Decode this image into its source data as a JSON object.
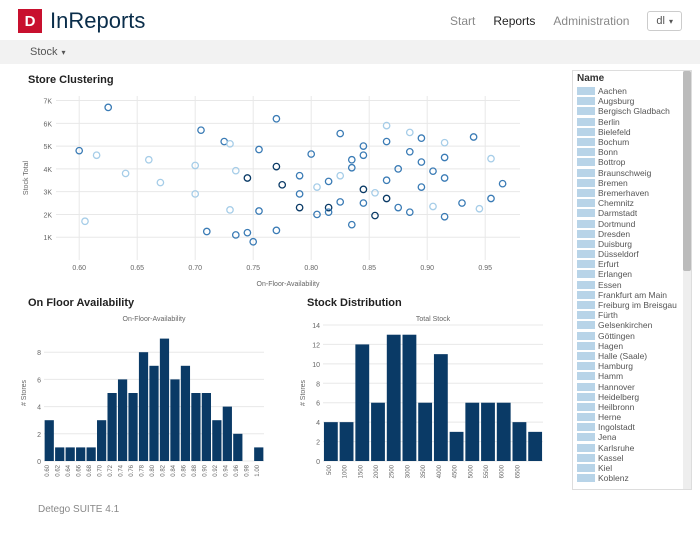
{
  "brand": {
    "in": "In",
    "reports": "Reports",
    "logo_letter": "D",
    "logo_bg": "#c8102e"
  },
  "nav": {
    "start": "Start",
    "reports": "Reports",
    "admin": "Administration",
    "user": "dl"
  },
  "toolbar": {
    "stock": "Stock"
  },
  "scatter": {
    "title": "Store Clustering",
    "xlabel": "On-Floor-Availability",
    "ylabel": "Stock Total",
    "xlim": [
      0.58,
      0.98
    ],
    "ylim": [
      0,
      7200
    ],
    "xticks": [
      0.6,
      0.65,
      0.7,
      0.75,
      0.8,
      0.85,
      0.9,
      0.95
    ],
    "yticks_labels": [
      "1K",
      "2K",
      "3K",
      "4K",
      "5K",
      "6K",
      "7K"
    ],
    "ytick_vals": [
      1000,
      2000,
      3000,
      4000,
      5000,
      6000,
      7000
    ],
    "grid_color": "#e8e8e8",
    "marker_stroke_width": 1.3,
    "marker_r": 3.2,
    "colors": {
      "dark": "#0a3a66",
      "mid": "#3a7bb5",
      "light": "#a6cde8"
    },
    "points": [
      {
        "x": 0.6,
        "y": 4800,
        "c": "mid"
      },
      {
        "x": 0.605,
        "y": 1700,
        "c": "light"
      },
      {
        "x": 0.615,
        "y": 4600,
        "c": "light"
      },
      {
        "x": 0.625,
        "y": 6700,
        "c": "mid"
      },
      {
        "x": 0.64,
        "y": 3800,
        "c": "light"
      },
      {
        "x": 0.66,
        "y": 4400,
        "c": "light"
      },
      {
        "x": 0.67,
        "y": 3400,
        "c": "light"
      },
      {
        "x": 0.705,
        "y": 5700,
        "c": "mid"
      },
      {
        "x": 0.7,
        "y": 4150,
        "c": "light"
      },
      {
        "x": 0.7,
        "y": 2900,
        "c": "light"
      },
      {
        "x": 0.71,
        "y": 1250,
        "c": "mid"
      },
      {
        "x": 0.725,
        "y": 5200,
        "c": "mid"
      },
      {
        "x": 0.73,
        "y": 5100,
        "c": "light"
      },
      {
        "x": 0.735,
        "y": 3920,
        "c": "light"
      },
      {
        "x": 0.73,
        "y": 2200,
        "c": "light"
      },
      {
        "x": 0.735,
        "y": 1100,
        "c": "mid"
      },
      {
        "x": 0.745,
        "y": 3600,
        "c": "dark"
      },
      {
        "x": 0.745,
        "y": 1200,
        "c": "mid"
      },
      {
        "x": 0.755,
        "y": 4850,
        "c": "mid"
      },
      {
        "x": 0.755,
        "y": 2150,
        "c": "mid"
      },
      {
        "x": 0.75,
        "y": 800,
        "c": "mid"
      },
      {
        "x": 0.77,
        "y": 6200,
        "c": "mid"
      },
      {
        "x": 0.77,
        "y": 4100,
        "c": "dark"
      },
      {
        "x": 0.775,
        "y": 3300,
        "c": "dark"
      },
      {
        "x": 0.77,
        "y": 1300,
        "c": "mid"
      },
      {
        "x": 0.79,
        "y": 3700,
        "c": "mid"
      },
      {
        "x": 0.79,
        "y": 2900,
        "c": "mid"
      },
      {
        "x": 0.79,
        "y": 2300,
        "c": "dark"
      },
      {
        "x": 0.8,
        "y": 4650,
        "c": "mid"
      },
      {
        "x": 0.805,
        "y": 3200,
        "c": "light"
      },
      {
        "x": 0.805,
        "y": 2000,
        "c": "mid"
      },
      {
        "x": 0.815,
        "y": 3450,
        "c": "mid"
      },
      {
        "x": 0.815,
        "y": 2300,
        "c": "dark"
      },
      {
        "x": 0.815,
        "y": 2100,
        "c": "mid"
      },
      {
        "x": 0.825,
        "y": 5550,
        "c": "mid"
      },
      {
        "x": 0.825,
        "y": 3700,
        "c": "light"
      },
      {
        "x": 0.825,
        "y": 2550,
        "c": "mid"
      },
      {
        "x": 0.835,
        "y": 4400,
        "c": "mid"
      },
      {
        "x": 0.835,
        "y": 4050,
        "c": "mid"
      },
      {
        "x": 0.835,
        "y": 1550,
        "c": "mid"
      },
      {
        "x": 0.845,
        "y": 5000,
        "c": "mid"
      },
      {
        "x": 0.845,
        "y": 4600,
        "c": "mid"
      },
      {
        "x": 0.845,
        "y": 3100,
        "c": "dark"
      },
      {
        "x": 0.845,
        "y": 2500,
        "c": "mid"
      },
      {
        "x": 0.855,
        "y": 2950,
        "c": "light"
      },
      {
        "x": 0.855,
        "y": 1950,
        "c": "dark"
      },
      {
        "x": 0.865,
        "y": 5900,
        "c": "light"
      },
      {
        "x": 0.865,
        "y": 5200,
        "c": "mid"
      },
      {
        "x": 0.865,
        "y": 3500,
        "c": "mid"
      },
      {
        "x": 0.865,
        "y": 2700,
        "c": "dark"
      },
      {
        "x": 0.875,
        "y": 4000,
        "c": "mid"
      },
      {
        "x": 0.875,
        "y": 2300,
        "c": "mid"
      },
      {
        "x": 0.885,
        "y": 5600,
        "c": "light"
      },
      {
        "x": 0.885,
        "y": 4750,
        "c": "mid"
      },
      {
        "x": 0.885,
        "y": 2100,
        "c": "mid"
      },
      {
        "x": 0.895,
        "y": 5350,
        "c": "mid"
      },
      {
        "x": 0.895,
        "y": 4300,
        "c": "mid"
      },
      {
        "x": 0.895,
        "y": 3200,
        "c": "mid"
      },
      {
        "x": 0.905,
        "y": 3900,
        "c": "mid"
      },
      {
        "x": 0.905,
        "y": 2350,
        "c": "light"
      },
      {
        "x": 0.915,
        "y": 5150,
        "c": "light"
      },
      {
        "x": 0.915,
        "y": 4500,
        "c": "mid"
      },
      {
        "x": 0.915,
        "y": 3600,
        "c": "mid"
      },
      {
        "x": 0.915,
        "y": 1900,
        "c": "mid"
      },
      {
        "x": 0.93,
        "y": 2500,
        "c": "mid"
      },
      {
        "x": 0.94,
        "y": 5400,
        "c": "mid"
      },
      {
        "x": 0.945,
        "y": 2250,
        "c": "light"
      },
      {
        "x": 0.955,
        "y": 4450,
        "c": "light"
      },
      {
        "x": 0.955,
        "y": 2700,
        "c": "mid"
      },
      {
        "x": 0.965,
        "y": 3350,
        "c": "mid"
      }
    ]
  },
  "hist1": {
    "title": "On Floor Availability",
    "subtitle": "On-Floor-Availability",
    "ylabel": "# Stores",
    "bar_color": "#0a3a66",
    "grid_color": "#e8e8e8",
    "ylim": [
      0,
      10
    ],
    "yticks": [
      0,
      2,
      4,
      6,
      8
    ],
    "categories": [
      "0.60",
      "0.62",
      "0.64",
      "0.66",
      "0.68",
      "0.70",
      "0.72",
      "0.74",
      "0.76",
      "0.78",
      "0.80",
      "0.82",
      "0.84",
      "0.86",
      "0.88",
      "0.90",
      "0.92",
      "0.94",
      "0.96",
      "0.98",
      "1.00"
    ],
    "values": [
      3,
      1,
      1,
      1,
      1,
      3,
      5,
      6,
      5,
      8,
      7,
      9,
      6,
      7,
      5,
      5,
      3,
      4,
      2,
      0,
      1
    ]
  },
  "hist2": {
    "title": "Stock Distribution",
    "subtitle": "Total Stock",
    "ylabel": "# Stores",
    "bar_color": "#0a3a66",
    "grid_color": "#e8e8e8",
    "ylim": [
      0,
      14
    ],
    "yticks": [
      0,
      2,
      4,
      6,
      8,
      10,
      12,
      14
    ],
    "categories": [
      "500",
      "1000",
      "1500",
      "2000",
      "2500",
      "3000",
      "3500",
      "4000",
      "4500",
      "5000",
      "5500",
      "6000",
      "6500"
    ],
    "values": [
      4,
      4,
      12,
      6,
      13,
      13,
      6,
      11,
      3,
      6,
      6,
      6,
      4,
      3
    ]
  },
  "sidebar": {
    "header": "Name",
    "swatch_color": "#b8d4e8",
    "items": [
      "Aachen",
      "Augsburg",
      "Bergisch Gladbach",
      "Berlin",
      "Bielefeld",
      "Bochum",
      "Bonn",
      "Bottrop",
      "Braunschweig",
      "Bremen",
      "Bremerhaven",
      "Chemnitz",
      "Darmstadt",
      "Dortmund",
      "Dresden",
      "Duisburg",
      "Düsseldorf",
      "Erfurt",
      "Erlangen",
      "Essen",
      "Frankfurt am Main",
      "Freiburg im Breisgau",
      "Fürth",
      "Gelsenkirchen",
      "Göttingen",
      "Hagen",
      "Halle (Saale)",
      "Hamburg",
      "Hamm",
      "Hannover",
      "Heidelberg",
      "Heilbronn",
      "Herne",
      "Ingolstadt",
      "Jena",
      "Karlsruhe",
      "Kassel",
      "Kiel",
      "Koblenz"
    ]
  },
  "footer": {
    "text": "Detego SUITE 4.1"
  }
}
